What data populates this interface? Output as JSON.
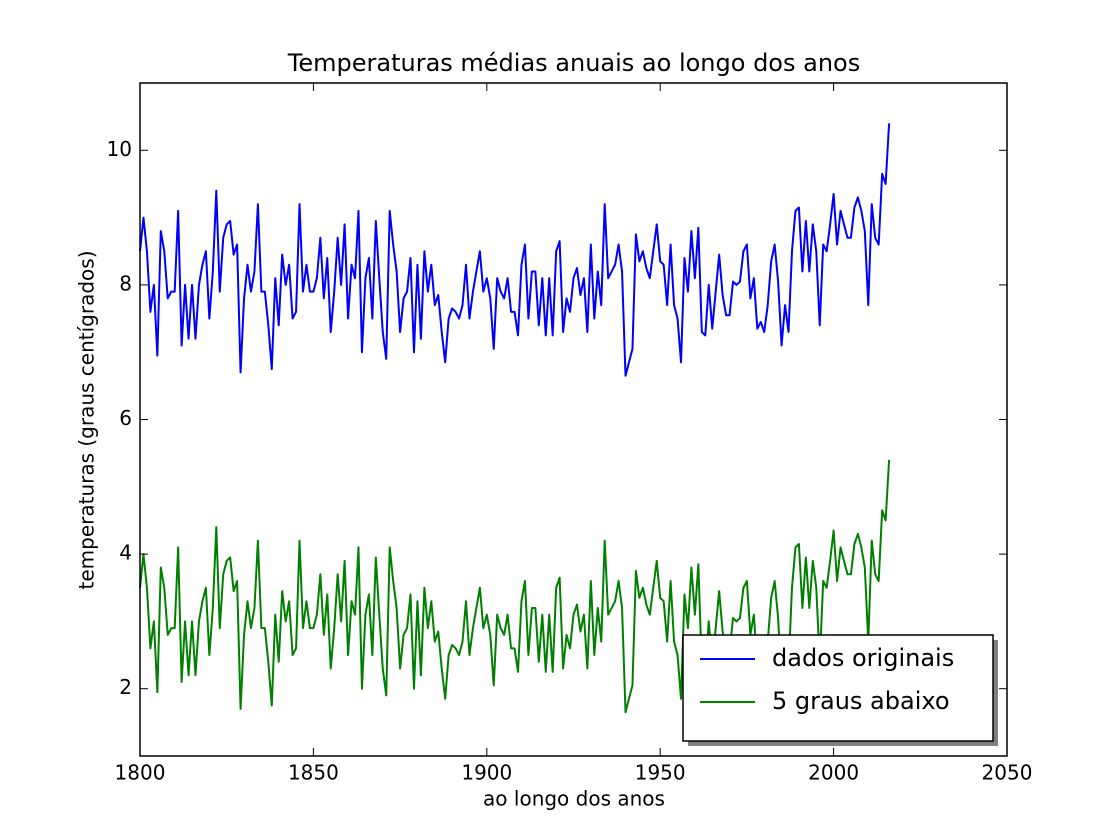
{
  "chart_data": {
    "type": "line",
    "title": "Temperaturas médias anuais ao longo dos anos",
    "xlabel": "ao longo dos anos",
    "ylabel": "temperaturas (graus centígrados)",
    "x": [
      1800,
      1801,
      1802,
      1803,
      1804,
      1805,
      1806,
      1807,
      1808,
      1809,
      1810,
      1811,
      1812,
      1813,
      1814,
      1815,
      1816,
      1817,
      1818,
      1819,
      1820,
      1821,
      1822,
      1823,
      1824,
      1825,
      1826,
      1827,
      1828,
      1829,
      1830,
      1831,
      1832,
      1833,
      1834,
      1835,
      1836,
      1837,
      1838,
      1839,
      1840,
      1841,
      1842,
      1843,
      1844,
      1845,
      1846,
      1847,
      1848,
      1849,
      1850,
      1851,
      1852,
      1853,
      1854,
      1855,
      1856,
      1857,
      1858,
      1859,
      1860,
      1861,
      1862,
      1863,
      1864,
      1865,
      1866,
      1867,
      1868,
      1869,
      1870,
      1871,
      1872,
      1873,
      1874,
      1875,
      1876,
      1877,
      1878,
      1879,
      1880,
      1881,
      1882,
      1883,
      1884,
      1885,
      1886,
      1887,
      1888,
      1889,
      1890,
      1891,
      1892,
      1893,
      1894,
      1895,
      1896,
      1897,
      1898,
      1899,
      1900,
      1901,
      1902,
      1903,
      1904,
      1905,
      1906,
      1907,
      1908,
      1909,
      1910,
      1911,
      1912,
      1913,
      1914,
      1915,
      1916,
      1917,
      1918,
      1919,
      1920,
      1921,
      1922,
      1923,
      1924,
      1925,
      1926,
      1927,
      1928,
      1929,
      1930,
      1931,
      1932,
      1933,
      1934,
      1935,
      1936,
      1937,
      1938,
      1939,
      1940,
      1941,
      1942,
      1943,
      1944,
      1945,
      1946,
      1947,
      1948,
      1949,
      1950,
      1951,
      1952,
      1953,
      1954,
      1955,
      1956,
      1957,
      1958,
      1959,
      1960,
      1961,
      1962,
      1963,
      1964,
      1965,
      1966,
      1967,
      1968,
      1969,
      1970,
      1971,
      1972,
      1973,
      1974,
      1975,
      1976,
      1977,
      1978,
      1979,
      1980,
      1981,
      1982,
      1983,
      1984,
      1985,
      1986,
      1987,
      1988,
      1989,
      1990,
      1991,
      1992,
      1993,
      1994,
      1995,
      1996,
      1997,
      1998,
      1999,
      2000,
      2001,
      2002,
      2003,
      2004,
      2005,
      2006,
      2007,
      2008,
      2009,
      2010,
      2011,
      2012,
      2013,
      2014,
      2015,
      2016
    ],
    "series": [
      {
        "name": "dados originais",
        "color": "#0000ff",
        "values": [
          8.5,
          9.0,
          8.5,
          7.6,
          8.0,
          6.95,
          8.8,
          8.5,
          7.8,
          7.9,
          7.9,
          9.1,
          7.1,
          8.0,
          7.2,
          8.0,
          7.2,
          8.0,
          8.3,
          8.5,
          7.5,
          8.2,
          9.4,
          7.9,
          8.7,
          8.9,
          8.95,
          8.45,
          8.6,
          6.7,
          7.8,
          8.3,
          7.9,
          8.2,
          9.2,
          7.9,
          7.9,
          7.4,
          6.75,
          8.1,
          7.4,
          8.45,
          8.0,
          8.3,
          7.5,
          7.6,
          9.2,
          7.9,
          8.3,
          7.9,
          7.9,
          8.1,
          8.7,
          7.8,
          8.4,
          7.3,
          7.9,
          8.7,
          8.0,
          8.9,
          7.5,
          8.3,
          8.1,
          9.1,
          7.0,
          8.1,
          8.4,
          7.5,
          8.95,
          8.1,
          7.3,
          6.9,
          9.1,
          8.6,
          8.2,
          7.3,
          7.8,
          7.9,
          8.4,
          7.0,
          8.3,
          7.2,
          8.5,
          7.9,
          8.3,
          7.7,
          7.85,
          7.3,
          6.85,
          7.5,
          7.65,
          7.6,
          7.5,
          7.7,
          8.3,
          7.5,
          7.9,
          8.2,
          8.5,
          7.9,
          8.1,
          7.8,
          7.05,
          8.1,
          7.9,
          7.8,
          8.1,
          7.6,
          7.6,
          7.25,
          8.3,
          8.6,
          7.5,
          8.2,
          8.2,
          7.4,
          8.1,
          7.25,
          8.1,
          7.25,
          8.5,
          8.65,
          7.3,
          7.8,
          7.6,
          8.1,
          8.25,
          7.85,
          8.1,
          7.3,
          8.6,
          7.5,
          8.2,
          7.7,
          9.2,
          8.1,
          8.2,
          8.3,
          8.6,
          8.2,
          6.65,
          6.85,
          7.05,
          8.75,
          8.35,
          8.5,
          8.25,
          8.1,
          8.5,
          8.9,
          8.35,
          8.3,
          7.7,
          8.6,
          7.7,
          7.5,
          6.85,
          8.4,
          7.9,
          8.8,
          8.1,
          8.85,
          7.3,
          7.25,
          8.0,
          7.35,
          7.9,
          8.45,
          7.85,
          7.55,
          7.55,
          8.05,
          8.0,
          8.05,
          8.5,
          8.6,
          7.8,
          8.1,
          7.35,
          7.45,
          7.3,
          7.7,
          8.35,
          8.6,
          8.05,
          7.1,
          7.7,
          7.3,
          8.5,
          9.1,
          9.15,
          8.2,
          8.95,
          8.2,
          8.9,
          8.5,
          7.4,
          8.6,
          8.5,
          8.9,
          9.35,
          8.6,
          9.1,
          8.9,
          8.7,
          8.7,
          9.15,
          9.3,
          9.1,
          8.8,
          7.7,
          9.2,
          8.7,
          8.6,
          9.65,
          9.5,
          10.4
        ]
      },
      {
        "name": "5 graus abaixo",
        "color": "#008000",
        "values": [
          3.5,
          4.0,
          3.5,
          2.6,
          3.0,
          1.95,
          3.8,
          3.5,
          2.8,
          2.9,
          2.9,
          4.1,
          2.1,
          3.0,
          2.2,
          3.0,
          2.2,
          3.0,
          3.3,
          3.5,
          2.5,
          3.2,
          4.4,
          2.9,
          3.7,
          3.9,
          3.95,
          3.45,
          3.6,
          1.7,
          2.8,
          3.3,
          2.9,
          3.2,
          4.2,
          2.9,
          2.9,
          2.4,
          1.75,
          3.1,
          2.4,
          3.45,
          3.0,
          3.3,
          2.5,
          2.6,
          4.2,
          2.9,
          3.3,
          2.9,
          2.9,
          3.1,
          3.7,
          2.8,
          3.4,
          2.3,
          2.9,
          3.7,
          3.0,
          3.9,
          2.5,
          3.3,
          3.1,
          4.1,
          2.0,
          3.1,
          3.4,
          2.5,
          3.95,
          3.1,
          2.3,
          1.9,
          4.1,
          3.6,
          3.2,
          2.3,
          2.8,
          2.9,
          3.4,
          2.0,
          3.3,
          2.2,
          3.5,
          2.9,
          3.3,
          2.7,
          2.85,
          2.3,
          1.85,
          2.5,
          2.65,
          2.6,
          2.5,
          2.7,
          3.3,
          2.5,
          2.9,
          3.2,
          3.5,
          2.9,
          3.1,
          2.8,
          2.05,
          3.1,
          2.9,
          2.8,
          3.1,
          2.6,
          2.6,
          2.25,
          3.3,
          3.6,
          2.5,
          3.2,
          3.2,
          2.4,
          3.1,
          2.25,
          3.1,
          2.25,
          3.5,
          3.65,
          2.3,
          2.8,
          2.6,
          3.1,
          3.25,
          2.85,
          3.1,
          2.3,
          3.6,
          2.5,
          3.2,
          2.7,
          4.2,
          3.1,
          3.2,
          3.3,
          3.6,
          3.2,
          1.65,
          1.85,
          2.05,
          3.75,
          3.35,
          3.5,
          3.25,
          3.1,
          3.5,
          3.9,
          3.35,
          3.3,
          2.7,
          3.6,
          2.7,
          2.5,
          1.85,
          3.4,
          2.9,
          3.8,
          3.1,
          3.85,
          2.3,
          2.25,
          3.0,
          2.35,
          2.9,
          3.45,
          2.85,
          2.55,
          2.55,
          3.05,
          3.0,
          3.05,
          3.5,
          3.6,
          2.8,
          3.1,
          2.35,
          2.45,
          2.3,
          2.7,
          3.35,
          3.6,
          3.05,
          2.1,
          2.7,
          2.3,
          3.5,
          4.1,
          4.15,
          3.2,
          3.95,
          3.2,
          3.9,
          3.5,
          2.4,
          3.6,
          3.5,
          3.9,
          4.35,
          3.6,
          4.1,
          3.9,
          3.7,
          3.7,
          4.15,
          4.3,
          4.1,
          3.8,
          2.7,
          4.2,
          3.7,
          3.6,
          4.65,
          4.5,
          5.4
        ]
      }
    ],
    "xlim": [
      1800,
      2050
    ],
    "xticks": [
      1800,
      1850,
      1900,
      1950,
      2000,
      2050
    ],
    "ylim": [
      1,
      11
    ],
    "yticks": [
      2,
      4,
      6,
      8,
      10
    ],
    "legend": "lower right"
  }
}
